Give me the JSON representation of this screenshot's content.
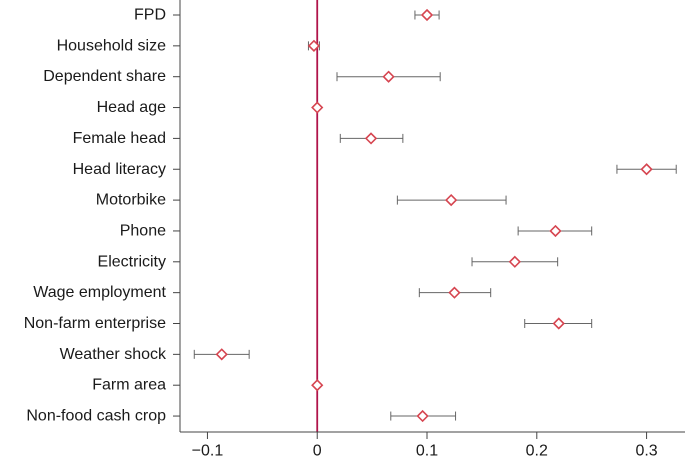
{
  "chart_data": {
    "type": "scatter",
    "title": "",
    "xlabel": "",
    "ylabel": "",
    "xlim": [
      -0.125,
      0.335
    ],
    "grid": false,
    "legend": "none",
    "x_ticks": [
      {
        "value": -0.1,
        "label": "−0.1"
      },
      {
        "value": 0,
        "label": "0"
      },
      {
        "value": 0.1,
        "label": "0.1"
      },
      {
        "value": 0.2,
        "label": "0.2"
      },
      {
        "value": 0.3,
        "label": "0.3"
      }
    ],
    "reference_line": 0,
    "categories": [
      "FPD",
      "Household size",
      "Dependent share",
      "Head age",
      "Female head",
      "Head literacy",
      "Motorbike",
      "Phone",
      "Electricity",
      "Wage employment",
      "Non-farm enterprise",
      "Weather shock",
      "Farm area",
      "Non-food cash crop"
    ],
    "series": [
      {
        "estimate": [
          0.1,
          -0.003,
          0.065,
          0.0,
          0.049,
          0.3,
          0.122,
          0.217,
          0.18,
          0.125,
          0.22,
          -0.087,
          0.0,
          0.096
        ],
        "ci_low": [
          0.089,
          -0.008,
          0.018,
          -0.001,
          0.021,
          0.273,
          0.073,
          0.183,
          0.141,
          0.093,
          0.189,
          -0.112,
          -0.001,
          0.067
        ],
        "ci_high": [
          0.111,
          0.002,
          0.112,
          0.001,
          0.078,
          0.327,
          0.172,
          0.25,
          0.219,
          0.158,
          0.25,
          -0.062,
          0.001,
          0.126
        ]
      }
    ],
    "colors": {
      "marker": "#d64550",
      "marker_fill": "#ffffff",
      "errorbar": "#666666",
      "reference_line": "#b0144a",
      "axis": "#444444"
    }
  }
}
